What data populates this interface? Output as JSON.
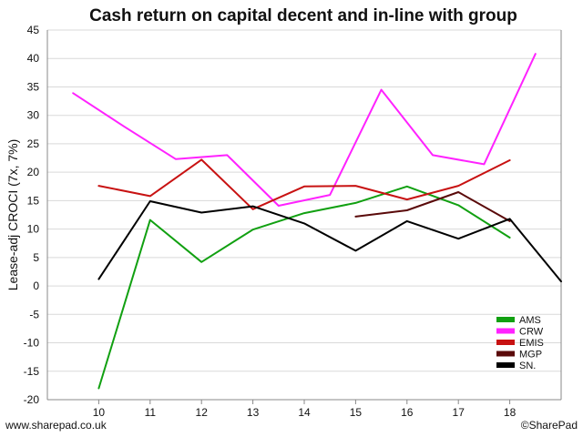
{
  "footer": {
    "left": "www.sharepad.co.uk",
    "right": "©SharePad"
  },
  "chart_data": {
    "type": "line",
    "title": "Cash return on capital decent and in-line with group",
    "xlabel": "",
    "ylabel": "Lease-adj CROCI (7x, 7%)",
    "xlim": [
      9.0,
      19.0
    ],
    "ylim": [
      -20,
      45
    ],
    "x_ticks": [
      10,
      11,
      12,
      13,
      14,
      15,
      16,
      17,
      18
    ],
    "y_ticks": [
      -20,
      -15,
      -10,
      -5,
      0,
      5,
      10,
      15,
      20,
      25,
      30,
      35,
      40,
      45
    ],
    "grid": "horizontal",
    "legend_position": "bottom-right",
    "series": [
      {
        "name": "AMS",
        "color": "#11a011",
        "points": [
          [
            10,
            -18.0
          ],
          [
            11,
            11.6
          ],
          [
            12,
            4.2
          ],
          [
            13,
            9.9
          ],
          [
            14,
            12.8
          ],
          [
            15,
            14.6
          ],
          [
            16,
            17.5
          ],
          [
            17,
            14.2
          ],
          [
            18,
            8.5
          ]
        ]
      },
      {
        "name": "CRW",
        "color": "#ff22ff",
        "points": [
          [
            9.5,
            33.9
          ],
          [
            10.5,
            28.0
          ],
          [
            11.5,
            22.3
          ],
          [
            12.5,
            23.0
          ],
          [
            13.5,
            14.1
          ],
          [
            14.5,
            16.0
          ],
          [
            15.5,
            34.5
          ],
          [
            16.5,
            23.0
          ],
          [
            17.5,
            21.4
          ],
          [
            18.5,
            40.8
          ]
        ]
      },
      {
        "name": "EMIS",
        "color": "#c81212",
        "points": [
          [
            10,
            17.6
          ],
          [
            11,
            15.8
          ],
          [
            12,
            22.2
          ],
          [
            13,
            13.5
          ],
          [
            14,
            17.5
          ],
          [
            15,
            17.6
          ],
          [
            16,
            15.2
          ],
          [
            17,
            17.6
          ],
          [
            18,
            22.1
          ]
        ]
      },
      {
        "name": "MGP",
        "color": "#5a0a0a",
        "points": [
          [
            15,
            12.2
          ],
          [
            16,
            13.3
          ],
          [
            17,
            16.5
          ],
          [
            18,
            11.4
          ]
        ]
      },
      {
        "name": "SN.",
        "color": "#000000",
        "points": [
          [
            10,
            1.2
          ],
          [
            11,
            14.9
          ],
          [
            12,
            12.9
          ],
          [
            13,
            14.0
          ],
          [
            14,
            11.0
          ],
          [
            15,
            6.2
          ],
          [
            16,
            11.4
          ],
          [
            17,
            8.3
          ],
          [
            18,
            11.8
          ],
          [
            19,
            0.8
          ]
        ]
      }
    ]
  }
}
